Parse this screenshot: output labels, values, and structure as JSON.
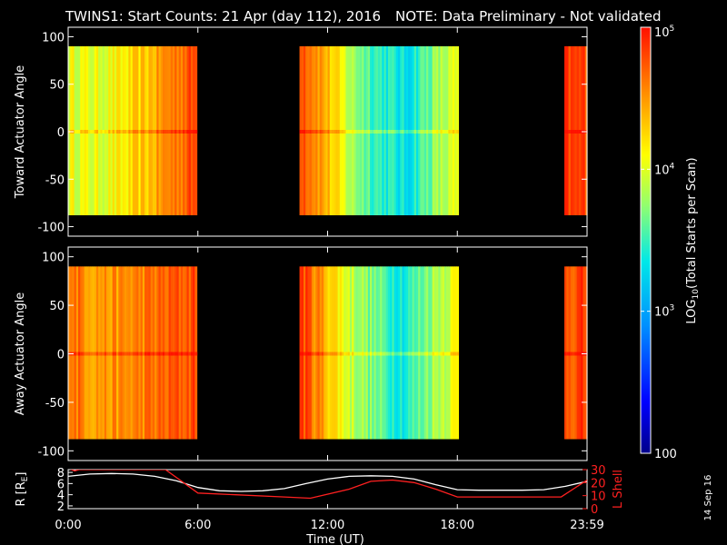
{
  "title": {
    "main": "TWINS1: Start Counts: 21 Apr (day 112), 2016",
    "note": "NOTE: Data Preliminary - Not validated",
    "note_color": "#ff2020"
  },
  "stamp": "14 Sep 16",
  "chart_data": [
    {
      "type": "heatmap",
      "name": "toward",
      "ylabel": "Toward Actuator Angle",
      "xlim": [
        0,
        24
      ],
      "ylim": [
        -110,
        110
      ],
      "yticks": [
        "100",
        "50",
        "0",
        "-50",
        "-100"
      ],
      "ytick_values": [
        100,
        50,
        0,
        -50,
        -100
      ],
      "data_y_range": [
        -88,
        90
      ],
      "segments": [
        {
          "start": 0.0,
          "end": 5.95,
          "mean_log": [
            4.05,
            4.0,
            4.1,
            4.3,
            4.6,
            4.8
          ]
        },
        {
          "start": 10.7,
          "end": 18.05,
          "mean_log": [
            4.9,
            4.4,
            3.8,
            3.5,
            3.3,
            3.7,
            4.0
          ]
        },
        {
          "start": 22.95,
          "end": 24.0,
          "mean_log": [
            4.8
          ]
        }
      ]
    },
    {
      "type": "heatmap",
      "name": "away",
      "ylabel": "Away Actuator Angle",
      "xlim": [
        0,
        24
      ],
      "ylim": [
        -110,
        110
      ],
      "yticks": [
        "100",
        "50",
        "0",
        "-50",
        "-100"
      ],
      "ytick_values": [
        100,
        50,
        0,
        -50,
        -100
      ],
      "data_y_range": [
        -88,
        90
      ],
      "segments": [
        {
          "start": 0.0,
          "end": 5.95,
          "mean_log": [
            4.7,
            4.5,
            4.5,
            4.6,
            4.7,
            4.8
          ]
        },
        {
          "start": 10.7,
          "end": 18.05,
          "mean_log": [
            4.9,
            4.4,
            3.9,
            3.6,
            3.4,
            3.8,
            4.1
          ]
        },
        {
          "start": 22.95,
          "end": 24.0,
          "mean_log": [
            4.8
          ]
        }
      ]
    },
    {
      "type": "line",
      "name": "orbit",
      "ylabel_left": "R [R",
      "ylabel_left_sub": "E",
      "ylabel_left_end": "]",
      "ylabel_right": "L Shell",
      "right_color": "#ff2020",
      "ylim_left": [
        1.5,
        8.5
      ],
      "ylim_right": [
        0,
        30
      ],
      "yticks_left": [
        "8",
        "6",
        "4",
        "2"
      ],
      "yticks_left_values": [
        8,
        6,
        4,
        2
      ],
      "yticks_right": [
        "30",
        "20",
        "10",
        "0"
      ],
      "yticks_right_values": [
        30,
        20,
        10,
        0
      ],
      "xlabel": "Time (UT)",
      "xticks": [
        "0:00",
        "6:00",
        "12:00",
        "18:00",
        "23:59"
      ],
      "xtick_values": [
        0,
        6,
        12,
        18,
        24
      ],
      "series": [
        {
          "name": "R",
          "color": "#ffffff",
          "x": [
            0,
            1,
            2,
            3,
            4,
            5,
            6,
            7,
            8,
            9,
            10,
            11,
            12,
            13,
            14,
            15,
            16,
            17,
            18,
            19,
            20,
            21,
            22,
            23,
            24
          ],
          "values": [
            7.3,
            7.7,
            7.8,
            7.7,
            7.3,
            6.5,
            5.3,
            4.7,
            4.6,
            4.7,
            5.1,
            6.0,
            6.8,
            7.3,
            7.4,
            7.3,
            6.8,
            5.8,
            4.9,
            4.8,
            4.8,
            4.8,
            4.9,
            5.5,
            6.4
          ]
        },
        {
          "name": "L Shell",
          "color": "#ff2020",
          "x": [
            0,
            0.3,
            0.5,
            4.5,
            6,
            10,
            11.2,
            13,
            14,
            15,
            16,
            17,
            18,
            22.8,
            24
          ],
          "values": [
            31,
            29,
            30,
            30,
            12,
            9,
            8,
            15,
            21,
            22,
            20,
            15,
            9,
            9,
            22
          ]
        }
      ]
    },
    {
      "type": "colorbar",
      "label_pre": "LOG",
      "label_sub": "10",
      "label_post": "(Total Starts per Scan)",
      "range_log": [
        2,
        5
      ],
      "ticks": [
        {
          "base": "10",
          "exp": "5",
          "value": 5
        },
        {
          "base": "10",
          "exp": "4",
          "value": 4
        },
        {
          "base": "10",
          "exp": "3",
          "value": 3
        },
        {
          "base": "100",
          "exp": "",
          "value": 2
        }
      ]
    }
  ]
}
